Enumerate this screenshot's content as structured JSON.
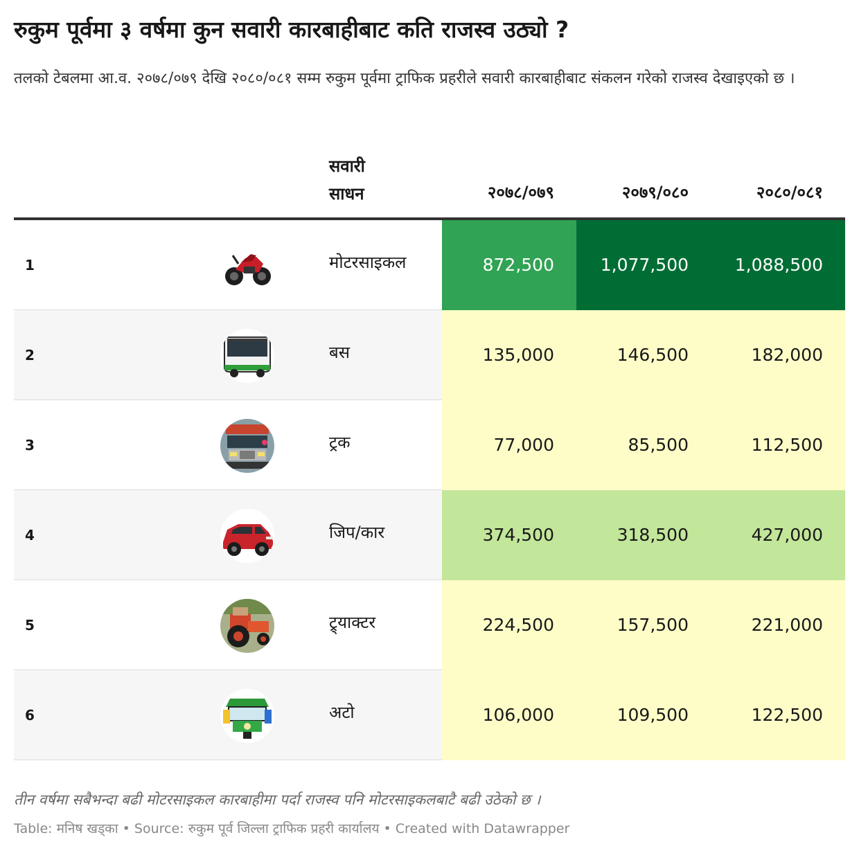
{
  "title": "रुकुम पूर्वमा ३ वर्षमा कुन सवारी कारबाहीबाट कति राजस्व उठ्यो ?",
  "intro": "तलको टेबलमा आ.व. २०७८/०७९ देखि २०८०/०८१ सम्म रुकुम पूर्वमा ट्राफिक प्रहरीले सवारी कारबाहीबाट संकलन गरेको राजस्व देखाइएको छ ।",
  "header": {
    "name_line1": "सवारी",
    "name_line2": "साधन",
    "years": [
      "२०७८/०७९",
      "२०७९/०८०",
      "२०८०/०८१"
    ]
  },
  "colors": {
    "heat_low": "#fefdc8",
    "heat_mid": "#c2e69a",
    "heat_high": "#31a354",
    "heat_top": "#006d35",
    "row_alt": "#f6f6f6"
  },
  "chart_data": {
    "type": "table",
    "title": "रुकुम पूर्वमा ३ वर्षमा कुन सवारी कारबाहीबाट कति राजस्व उठ्यो ?",
    "columns": [
      "सवारी साधन",
      "२०७८/०७९",
      "२०७९/०८०",
      "२०८०/०८१"
    ],
    "rows": [
      {
        "rank": "1",
        "icon": "motorcycle-icon",
        "name": "मोटरसाइकल",
        "values": [
          872500,
          1077500,
          1088500
        ],
        "labels": [
          "872,500",
          "1,077,500",
          "1,088,500"
        ]
      },
      {
        "rank": "2",
        "icon": "bus-icon",
        "name": "बस",
        "values": [
          135000,
          146500,
          182000
        ],
        "labels": [
          "135,000",
          "146,500",
          "182,000"
        ]
      },
      {
        "rank": "3",
        "icon": "truck-icon",
        "name": "ट्रक",
        "values": [
          77000,
          85500,
          112500
        ],
        "labels": [
          "77,000",
          "85,500",
          "112,500"
        ]
      },
      {
        "rank": "4",
        "icon": "jeep-car-icon",
        "name": "जिप/कार",
        "values": [
          374500,
          318500,
          427000
        ],
        "labels": [
          "374,500",
          "318,500",
          "427,000"
        ]
      },
      {
        "rank": "5",
        "icon": "tractor-icon",
        "name": "ट्र्याक्टर",
        "values": [
          224500,
          157500,
          221000
        ],
        "labels": [
          "224,500",
          "157,500",
          "221,000"
        ]
      },
      {
        "rank": "6",
        "icon": "auto-rickshaw-icon",
        "name": "अटो",
        "values": [
          106000,
          109500,
          122500
        ],
        "labels": [
          "106,000",
          "109,500",
          "122,500"
        ]
      }
    ]
  },
  "notes": "तीन वर्षमा सबैभन्दा बढी मोटरसाइकल कारबाहीमा पर्दा राजस्व पनि मोटरसाइकलबाटै बढी उठेको छ ।",
  "credit": "Table: मनिष खड्का • Source: रुकुम पूर्व जिल्ला ट्राफिक प्रहरी कार्यालय • Created with Datawrapper"
}
